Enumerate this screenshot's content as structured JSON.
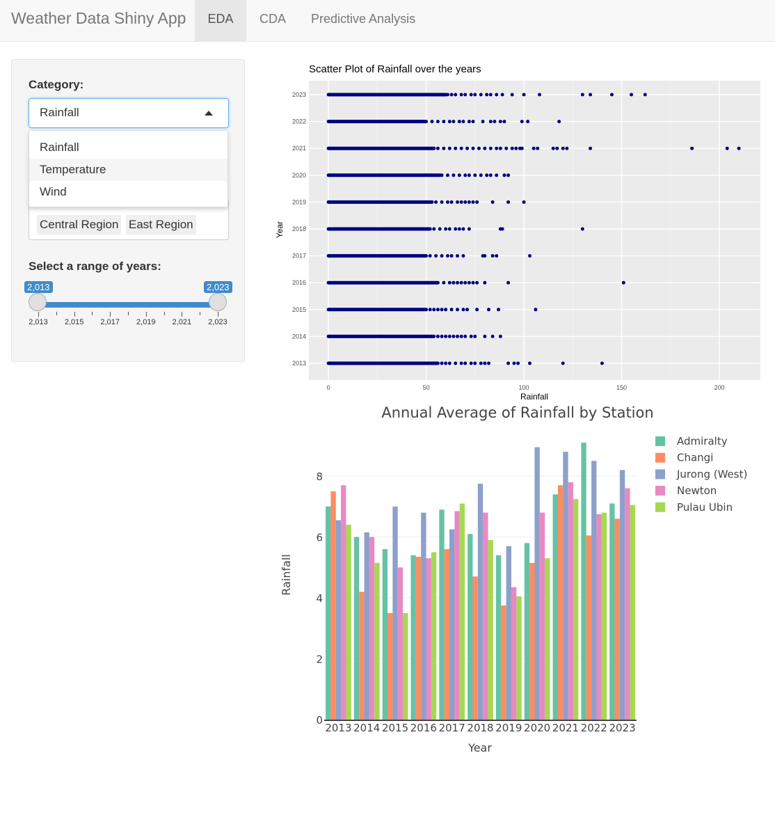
{
  "navbar": {
    "brand": "Weather Data Shiny App",
    "tabs": [
      {
        "label": "EDA",
        "active": true
      },
      {
        "label": "CDA",
        "active": false
      },
      {
        "label": "Predictive Analysis",
        "active": false
      }
    ]
  },
  "sidebar": {
    "category_label": "Category:",
    "category_value": "Rainfall",
    "category_options": [
      "Rainfall",
      "Temperature",
      "Wind"
    ],
    "highlighted_option": "Temperature",
    "region_chips": [
      "Central Region",
      "East Region"
    ],
    "year_range_label": "Select a range of years:",
    "year_range": {
      "min": "2,013",
      "max": "2,023",
      "from": "2,013",
      "to": "2,023"
    },
    "year_ticks": [
      "2,013",
      "2,015",
      "2,017",
      "2,019",
      "2,021",
      "2,023"
    ]
  },
  "colors": {
    "accent": "#428bca",
    "scatter_point": "#000080",
    "panel_bg": "#ebebeb"
  },
  "chart_data": [
    {
      "type": "scatter",
      "title": "Scatter Plot of Rainfall over the years",
      "xlabel": "Rainfall",
      "ylabel": "Year",
      "xlim": [
        -10,
        221
      ],
      "xticks": [
        0,
        50,
        100,
        150,
        200
      ],
      "yticks": [
        2013,
        2014,
        2015,
        2016,
        2017,
        2018,
        2019,
        2020,
        2021,
        2022,
        2023
      ],
      "grid": true,
      "series": [
        {
          "year": 2023,
          "dense_max": 60,
          "outliers": [
            61,
            63,
            65,
            68,
            70,
            73,
            75,
            78,
            81,
            83,
            86,
            89,
            94,
            100,
            108,
            130,
            134,
            145,
            155,
            162
          ]
        },
        {
          "year": 2022,
          "dense_max": 50,
          "outliers": [
            53,
            56,
            59,
            62,
            64,
            67,
            69,
            72,
            74,
            79,
            83,
            85,
            88,
            90,
            99,
            102,
            118
          ]
        },
        {
          "year": 2021,
          "dense_max": 54,
          "outliers": [
            56,
            59,
            62,
            65,
            68,
            71,
            74,
            77,
            80,
            83,
            86,
            88,
            91,
            94,
            96,
            98,
            99,
            105,
            107,
            115,
            117,
            120,
            122,
            134,
            186,
            204,
            210
          ]
        },
        {
          "year": 2020,
          "dense_max": 57,
          "outliers": [
            58,
            61,
            64,
            67,
            70,
            72,
            75,
            78,
            81,
            83,
            86,
            90,
            92
          ]
        },
        {
          "year": 2019,
          "dense_max": 53,
          "outliers": [
            55,
            58,
            61,
            63,
            66,
            68,
            70,
            72,
            74,
            76,
            84,
            92,
            100
          ]
        },
        {
          "year": 2018,
          "dense_max": 52,
          "outliers": [
            54,
            57,
            60,
            62,
            65,
            67,
            69,
            72,
            88,
            89,
            130
          ]
        },
        {
          "year": 2017,
          "dense_max": 50,
          "outliers": [
            52,
            55,
            58,
            61,
            63,
            66,
            69,
            79,
            80,
            84,
            86,
            103
          ]
        },
        {
          "year": 2016,
          "dense_max": 56,
          "outliers": [
            59,
            62,
            64,
            66,
            68,
            70,
            72,
            74,
            76,
            80,
            92,
            151
          ]
        },
        {
          "year": 2015,
          "dense_max": 50,
          "outliers": [
            52,
            54,
            56,
            58,
            60,
            63,
            66,
            69,
            71,
            76,
            82,
            87,
            106
          ]
        },
        {
          "year": 2014,
          "dense_max": 54,
          "outliers": [
            56,
            58,
            60,
            62,
            64,
            66,
            68,
            70,
            73,
            75,
            80,
            84,
            88
          ]
        },
        {
          "year": 2013,
          "dense_max": 56,
          "outliers": [
            58,
            60,
            62,
            65,
            68,
            70,
            73,
            75,
            78,
            80,
            82,
            92,
            95,
            97,
            103,
            120,
            140
          ]
        }
      ]
    },
    {
      "type": "bar",
      "title": "Annual Average of Rainfall by Station",
      "xlabel": "Year",
      "ylabel": "Rainfall",
      "ylim": [
        0,
        9.1
      ],
      "yticks": [
        0,
        2,
        4,
        6,
        8
      ],
      "legend": "right",
      "categories": [
        "2013",
        "2014",
        "2015",
        "2016",
        "2017",
        "2018",
        "2019",
        "2020",
        "2021",
        "2022",
        "2023"
      ],
      "series": [
        {
          "name": "Admiralty",
          "color": "#66c2a5",
          "values": [
            7.0,
            6.0,
            5.6,
            5.4,
            6.9,
            6.1,
            5.4,
            5.8,
            7.4,
            9.1,
            7.1
          ]
        },
        {
          "name": "Changi",
          "color": "#fc8d62",
          "values": [
            7.5,
            4.2,
            3.5,
            5.35,
            5.6,
            4.7,
            3.75,
            5.15,
            7.7,
            6.05,
            6.6
          ]
        },
        {
          "name": "Jurong (West)",
          "color": "#8da0cb",
          "values": [
            6.55,
            6.15,
            7.0,
            6.8,
            6.25,
            7.75,
            5.7,
            8.95,
            8.8,
            8.5,
            8.2
          ]
        },
        {
          "name": "Newton",
          "color": "#e78ac3",
          "values": [
            7.7,
            6.0,
            5.0,
            5.3,
            6.85,
            6.8,
            4.35,
            6.8,
            7.8,
            6.75,
            7.6
          ]
        },
        {
          "name": "Pulau Ubin",
          "color": "#a6d854",
          "values": [
            6.4,
            5.15,
            3.5,
            5.5,
            7.1,
            5.9,
            4.05,
            5.3,
            7.25,
            6.8,
            7.05
          ]
        }
      ]
    }
  ]
}
